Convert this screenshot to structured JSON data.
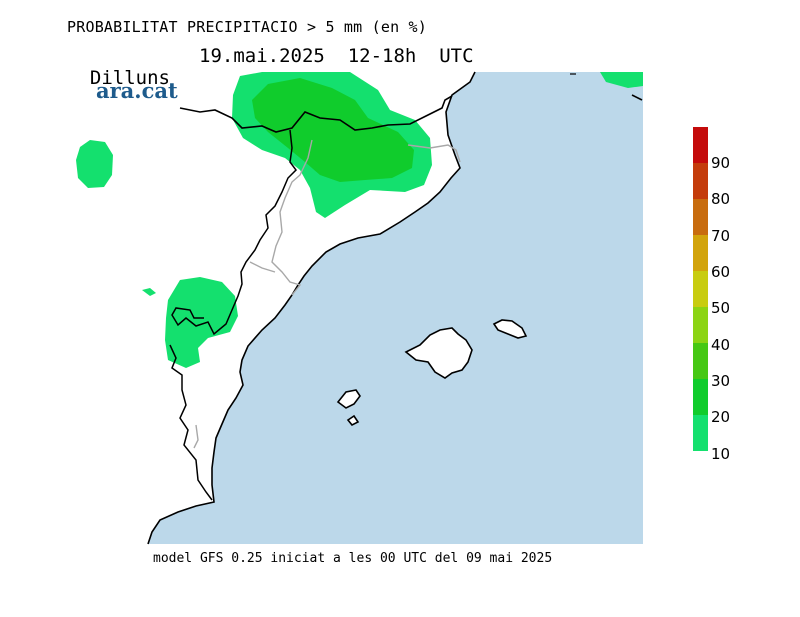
{
  "header": {
    "title": "PROBABILITAT PRECIPITACIO > 5 mm (en %)",
    "day": "Dilluns",
    "date_range": "19.mai.2025  12-18h  UTC"
  },
  "logo": {
    "text": "ara.cat",
    "color": "#1e5b8c"
  },
  "footer": {
    "model_info": "model GFS 0.25 iniciat a les 00 UTC del 09 mai 2025"
  },
  "colors": {
    "sea": "#bcd8ea",
    "land": "#ffffff",
    "low_prob": "#14e06e",
    "mid_prob": "#10cc2c"
  },
  "legend": {
    "items": [
      {
        "label": "",
        "color": "#c40b0b"
      },
      {
        "label": "90",
        "color": "#c43c0b"
      },
      {
        "label": "80",
        "color": "#c86c0e"
      },
      {
        "label": "70",
        "color": "#d2a40c"
      },
      {
        "label": "60",
        "color": "#c8cc10"
      },
      {
        "label": "50",
        "color": "#8cd414"
      },
      {
        "label": "40",
        "color": "#46c814"
      },
      {
        "label": "30",
        "color": "#10cc2c"
      },
      {
        "label": "20",
        "color": "#14e06e"
      },
      {
        "label": "10",
        "color": ""
      }
    ]
  }
}
